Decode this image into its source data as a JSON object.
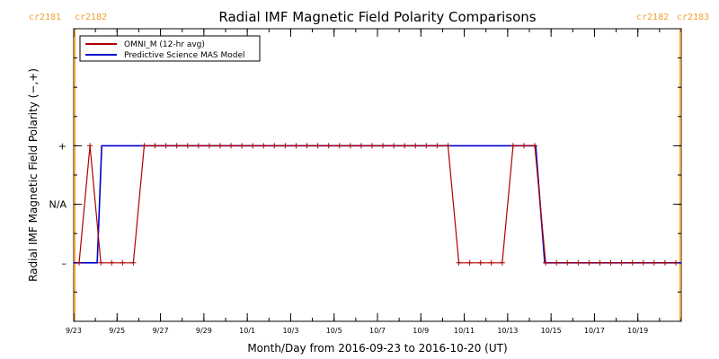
{
  "chart_data": {
    "type": "line",
    "title": "Radial IMF Magnetic Field Polarity Comparisons",
    "xlabel": "Month/Day from 2016-09-23 to 2016-10-20 (UT)",
    "ylabel": "Radial IMF Magnetic Field Polarity (−,+)",
    "x_range": [
      "2016-09-23T00:00",
      "2016-10-21T00:00"
    ],
    "y_categories": [
      "−",
      "N/A",
      "+"
    ],
    "y_tick_labels": [
      {
        "label": "+",
        "value": 1
      },
      {
        "label": "N/A",
        "value": 0
      },
      {
        "label": "–",
        "value": -1
      }
    ],
    "ylim": [
      -2,
      3
    ],
    "x_tick_labels": [
      "9/23",
      "9/25",
      "9/27",
      "9/29",
      "10/1",
      "10/3",
      "10/5",
      "10/7",
      "10/9",
      "10/11",
      "10/13",
      "10/15",
      "10/17",
      "10/19"
    ],
    "x_tick_dates": [
      "2016-09-23",
      "2016-09-25",
      "2016-09-27",
      "2016-09-29",
      "2016-10-01",
      "2016-10-03",
      "2016-10-05",
      "2016-10-07",
      "2016-10-09",
      "2016-10-11",
      "2016-10-13",
      "2016-10-15",
      "2016-10-17",
      "2016-10-19"
    ],
    "carrington_markers": [
      {
        "label_left": "cr2181",
        "label_right": "cr2182",
        "date": "2016-09-23T01:00",
        "color": "#f0a030"
      },
      {
        "label_left": "cr2182",
        "label_right": "cr2183",
        "date": "2016-10-20T23:00",
        "color": "#f0a030"
      }
    ],
    "series": [
      {
        "name": "OMNI_M (12-hr avg)",
        "color": "#b00000",
        "points": [
          [
            "2016-09-23T06:00",
            -1
          ],
          [
            "2016-09-23T18:00",
            1
          ],
          [
            "2016-09-24T06:00",
            -1
          ],
          [
            "2016-09-24T18:00",
            -1
          ],
          [
            "2016-09-25T06:00",
            -1
          ],
          [
            "2016-09-25T18:00",
            -1
          ],
          [
            "2016-09-26T06:00",
            1
          ],
          [
            "2016-09-26T18:00",
            1
          ],
          [
            "2016-09-27T06:00",
            1
          ],
          [
            "2016-09-27T18:00",
            1
          ],
          [
            "2016-09-28T06:00",
            1
          ],
          [
            "2016-09-28T18:00",
            1
          ],
          [
            "2016-09-29T06:00",
            1
          ],
          [
            "2016-09-29T18:00",
            1
          ],
          [
            "2016-09-30T06:00",
            1
          ],
          [
            "2016-09-30T18:00",
            1
          ],
          [
            "2016-10-01T06:00",
            1
          ],
          [
            "2016-10-01T18:00",
            1
          ],
          [
            "2016-10-02T06:00",
            1
          ],
          [
            "2016-10-02T18:00",
            1
          ],
          [
            "2016-10-03T06:00",
            1
          ],
          [
            "2016-10-03T18:00",
            1
          ],
          [
            "2016-10-04T06:00",
            1
          ],
          [
            "2016-10-04T18:00",
            1
          ],
          [
            "2016-10-05T06:00",
            1
          ],
          [
            "2016-10-05T18:00",
            1
          ],
          [
            "2016-10-06T06:00",
            1
          ],
          [
            "2016-10-06T18:00",
            1
          ],
          [
            "2016-10-07T06:00",
            1
          ],
          [
            "2016-10-07T18:00",
            1
          ],
          [
            "2016-10-08T06:00",
            1
          ],
          [
            "2016-10-08T18:00",
            1
          ],
          [
            "2016-10-09T06:00",
            1
          ],
          [
            "2016-10-09T18:00",
            1
          ],
          [
            "2016-10-10T06:00",
            1
          ],
          [
            "2016-10-10T18:00",
            -1
          ],
          [
            "2016-10-11T06:00",
            -1
          ],
          [
            "2016-10-11T18:00",
            -1
          ],
          [
            "2016-10-12T06:00",
            -1
          ],
          [
            "2016-10-12T18:00",
            -1
          ],
          [
            "2016-10-13T06:00",
            1
          ],
          [
            "2016-10-13T18:00",
            1
          ],
          [
            "2016-10-14T06:00",
            1
          ],
          [
            "2016-10-14T18:00",
            -1
          ],
          [
            "2016-10-15T06:00",
            -1
          ],
          [
            "2016-10-15T18:00",
            -1
          ],
          [
            "2016-10-16T06:00",
            -1
          ],
          [
            "2016-10-16T18:00",
            -1
          ],
          [
            "2016-10-17T06:00",
            -1
          ],
          [
            "2016-10-17T18:00",
            -1
          ],
          [
            "2016-10-18T06:00",
            -1
          ],
          [
            "2016-10-18T18:00",
            -1
          ],
          [
            "2016-10-19T06:00",
            -1
          ],
          [
            "2016-10-19T18:00",
            -1
          ],
          [
            "2016-10-20T06:00",
            -1
          ],
          [
            "2016-10-20T18:00",
            -1
          ]
        ]
      },
      {
        "name": "Predictive Science MAS Model",
        "color": "#0000cc",
        "points": [
          [
            "2016-09-23T00:00",
            -1
          ],
          [
            "2016-09-24T02:00",
            -1
          ],
          [
            "2016-09-24T07:00",
            1
          ],
          [
            "2016-10-14T07:00",
            1
          ],
          [
            "2016-10-14T17:00",
            -1
          ],
          [
            "2016-10-21T00:00",
            -1
          ]
        ]
      }
    ],
    "legend_position": "top-left",
    "grid": false
  }
}
